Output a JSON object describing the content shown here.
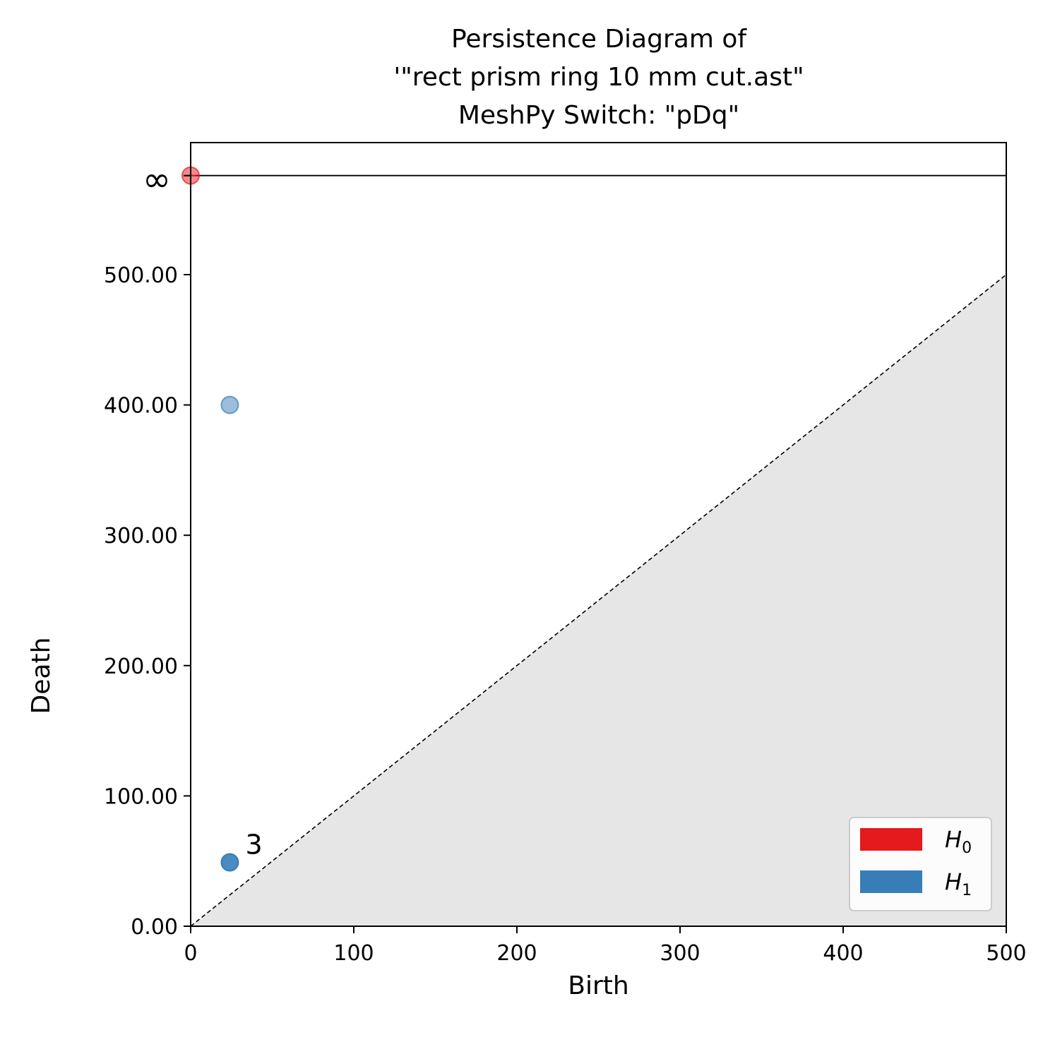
{
  "chart_data": {
    "type": "scatter",
    "title": [
      "Persistence Diagram of",
      "'\"rect prism ring 10 mm cut.ast\"",
      "MeshPy Switch: \"pDq\""
    ],
    "xlabel": "Birth",
    "ylabel": "Death",
    "xlim": [
      0,
      500
    ],
    "ylim": [
      0,
      500
    ],
    "inf_level": 576,
    "inf_label": "∞",
    "x_ticks": [
      0,
      100,
      200,
      300,
      400,
      500
    ],
    "x_tick_labels": [
      "0",
      "100",
      "200",
      "300",
      "400",
      "500"
    ],
    "y_ticks": [
      0,
      100,
      200,
      300,
      400,
      500
    ],
    "y_tick_labels": [
      "0.00",
      "100.00",
      "200.00",
      "300.00",
      "400.00",
      "500.00"
    ],
    "diagonal": true,
    "grid": false,
    "legend_position": "bottom-right",
    "series": [
      {
        "name": "H0",
        "color": "#e41a1c",
        "points": [
          {
            "birth": 0,
            "death": "inf",
            "multiplicity": 1
          }
        ]
      },
      {
        "name": "H1",
        "color": "#377eb8",
        "points": [
          {
            "birth": 24,
            "death": 400,
            "multiplicity": 1
          },
          {
            "birth": 24,
            "death": 49,
            "multiplicity": 3
          }
        ]
      }
    ],
    "annotations": [
      {
        "text": "3"
      }
    ]
  }
}
